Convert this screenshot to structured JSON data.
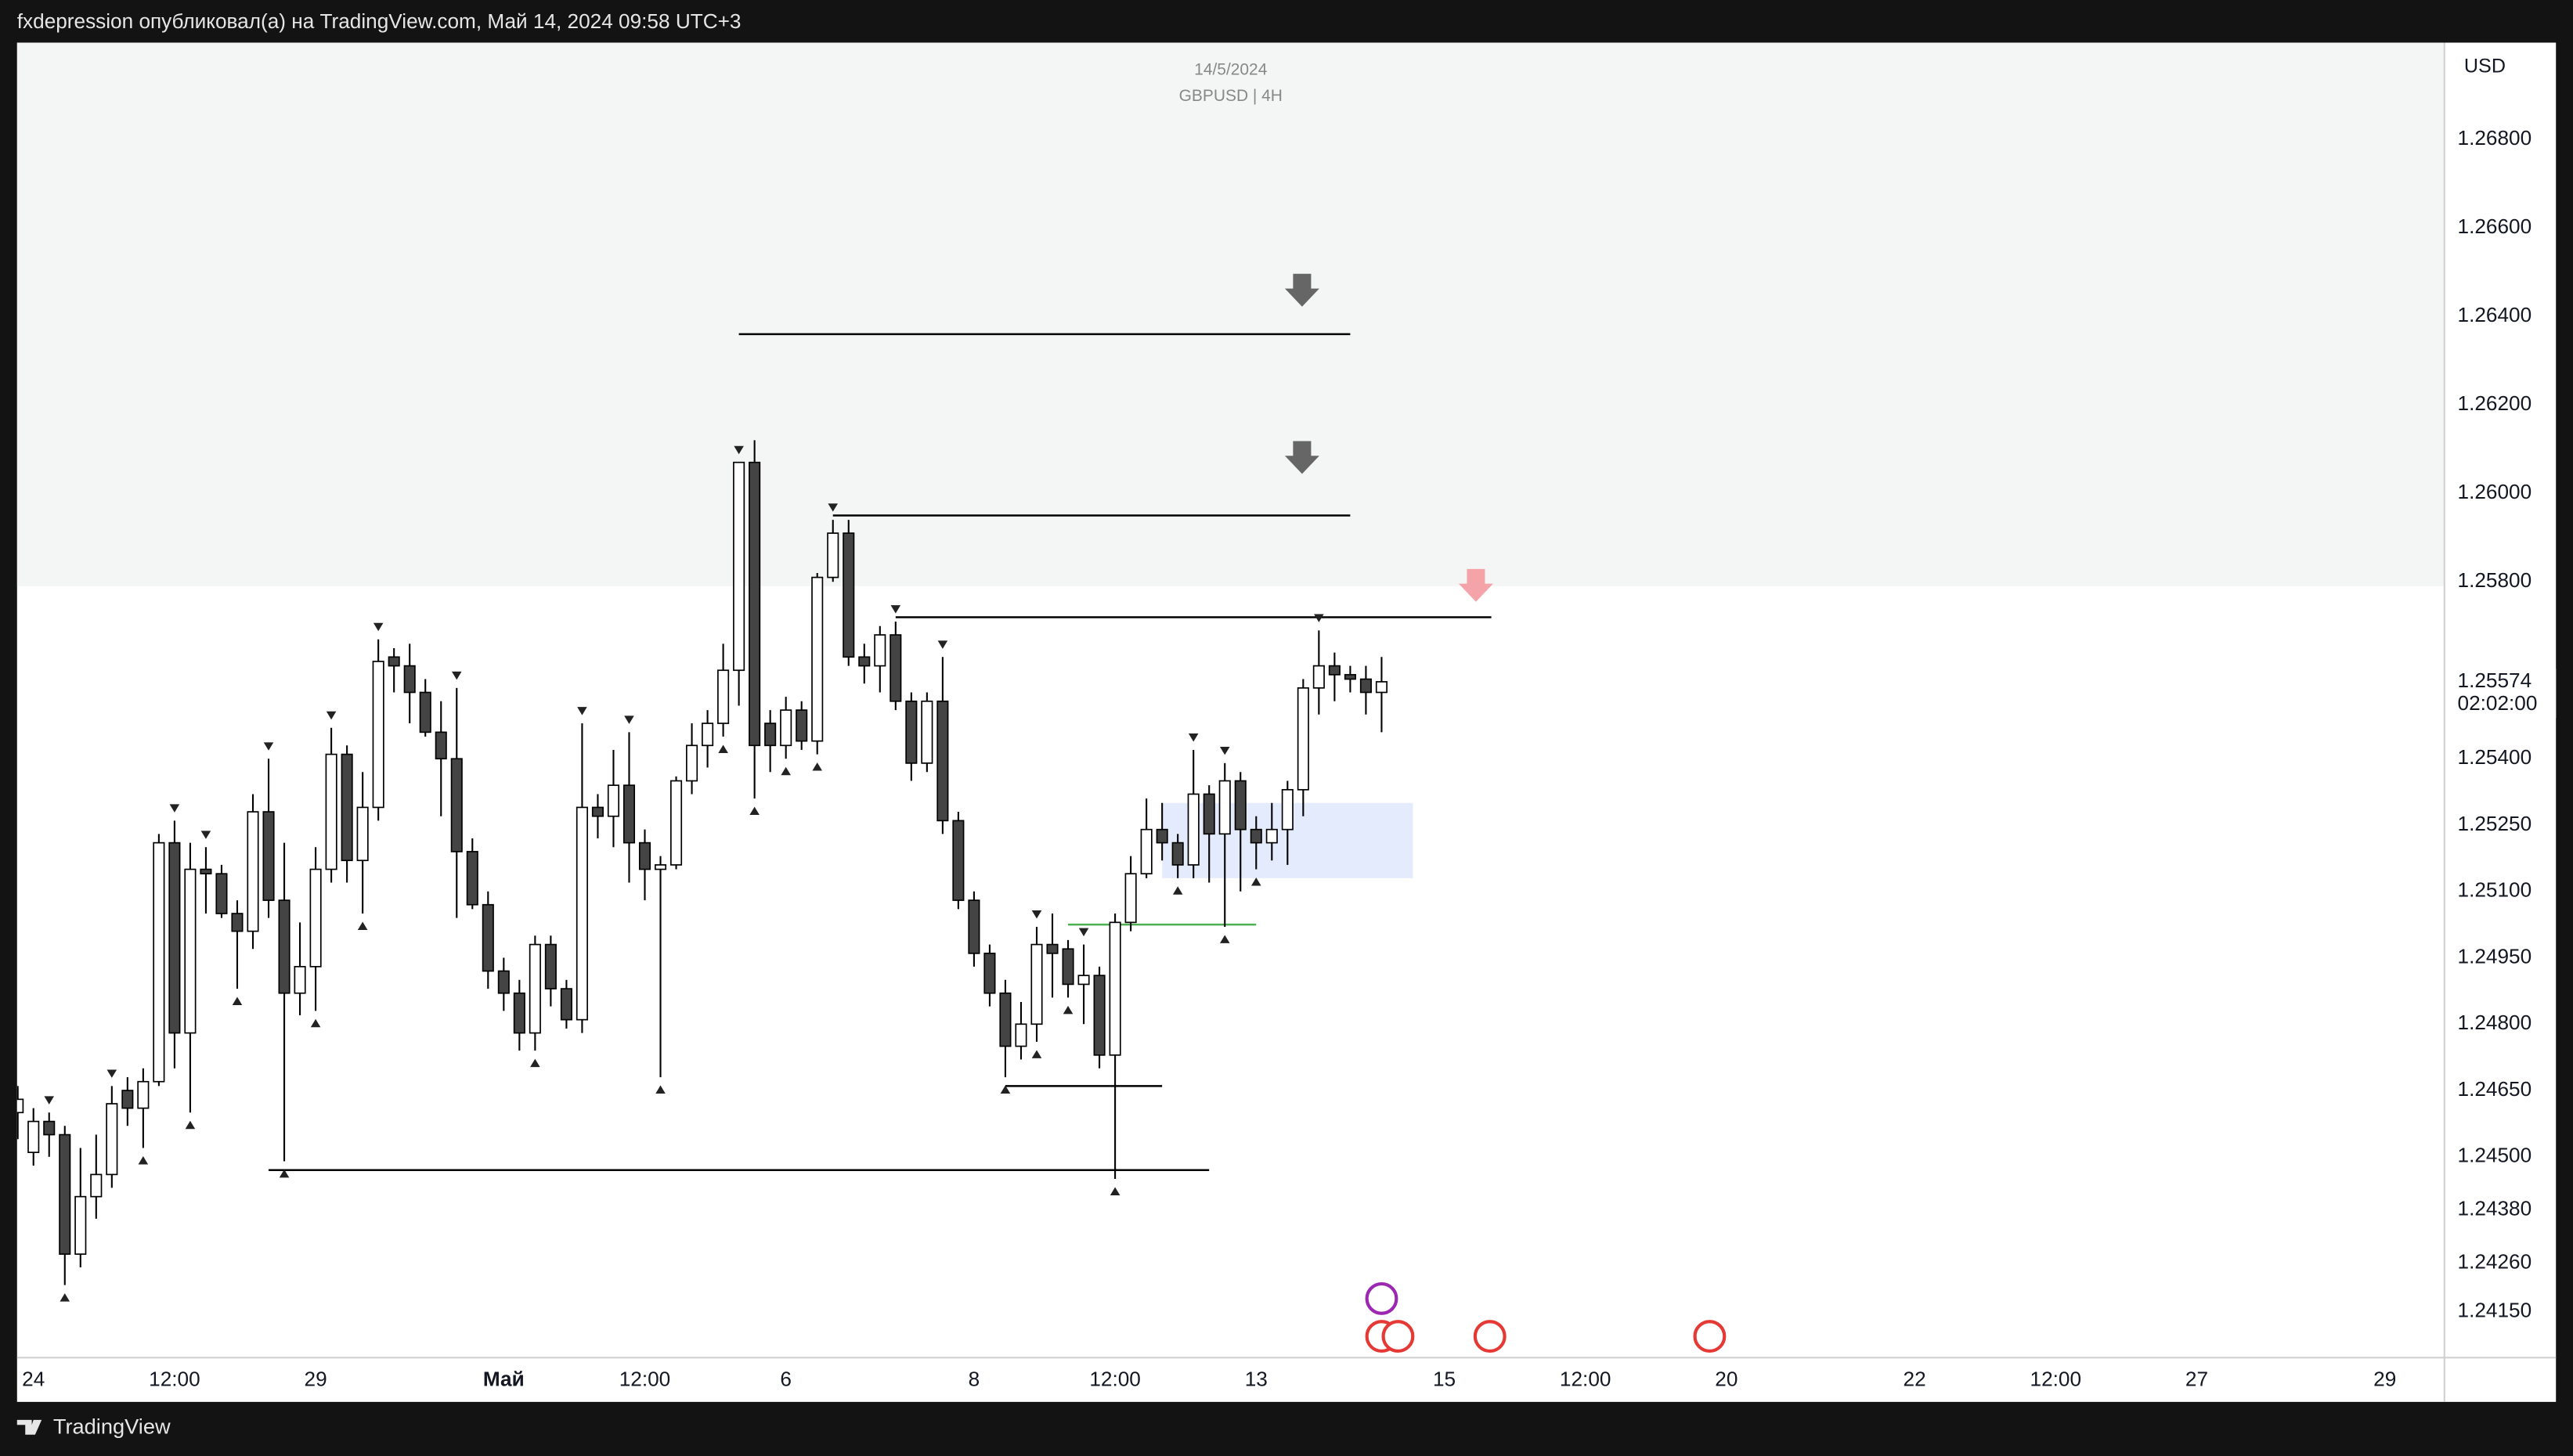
{
  "header": {
    "text": "fxdepression опубликовал(а) на TradingView.com, Май 14, 2024 09:58 UTC+3"
  },
  "footer": {
    "brand": "TradingView"
  },
  "chart_data": {
    "type": "candlestick",
    "watermark_date": "14/5/2024",
    "symbol": "GBPUSD | 4H",
    "currency": "USD",
    "last_price": 1.25574,
    "countdown": "02:02:00",
    "up_color": "#ffffff",
    "down_color": "#444444",
    "border_color": "#000000",
    "xlim": [
      -1.046,
      153.8
    ],
    "ylim": [
      1.24046,
      1.27019
    ],
    "grid": false,
    "yticks": [
      {
        "value": 1.268,
        "label": "1.26800"
      },
      {
        "value": 1.266,
        "label": "1.26600"
      },
      {
        "value": 1.264,
        "label": "1.26400"
      },
      {
        "value": 1.262,
        "label": "1.26200"
      },
      {
        "value": 1.26,
        "label": "1.26000"
      },
      {
        "value": 1.258,
        "label": "1.25800"
      },
      {
        "value": 1.254,
        "label": "1.25400"
      },
      {
        "value": 1.2525,
        "label": "1.25250"
      },
      {
        "value": 1.251,
        "label": "1.25100"
      },
      {
        "value": 1.2495,
        "label": "1.24950"
      },
      {
        "value": 1.248,
        "label": "1.24800"
      },
      {
        "value": 1.2465,
        "label": "1.24650"
      },
      {
        "value": 1.245,
        "label": "1.24500"
      },
      {
        "value": 1.2438,
        "label": "1.24380"
      },
      {
        "value": 1.2426,
        "label": "1.24260"
      },
      {
        "value": 1.2415,
        "label": "1.24150"
      }
    ],
    "xticks": [
      {
        "value": 0,
        "label": "24"
      },
      {
        "value": 9,
        "label": "12:00"
      },
      {
        "value": 18,
        "label": "29"
      },
      {
        "value": 30,
        "label": "Май"
      },
      {
        "value": 39,
        "label": "12:00"
      },
      {
        "value": 48,
        "label": "6"
      },
      {
        "value": 60,
        "label": "8"
      },
      {
        "value": 69,
        "label": "12:00"
      },
      {
        "value": 78,
        "label": "13"
      },
      {
        "value": 90,
        "label": "15"
      },
      {
        "value": 99,
        "label": "12:00"
      },
      {
        "value": 108,
        "label": "20"
      },
      {
        "value": 120,
        "label": "22"
      },
      {
        "value": 129,
        "label": "12:00"
      },
      {
        "value": 138,
        "label": "27"
      },
      {
        "value": 150,
        "label": "29"
      }
    ],
    "series": [
      {
        "x": [
          -1,
          0,
          1,
          2,
          3,
          4,
          5,
          6,
          7,
          8,
          9,
          10,
          11,
          12,
          13,
          14,
          15,
          16,
          17,
          18,
          19,
          20,
          21,
          22,
          23,
          24,
          25,
          26,
          27,
          28,
          29,
          30,
          31,
          32,
          33,
          34,
          35,
          36,
          37,
          38,
          39,
          40,
          41,
          42,
          43,
          44,
          45,
          46,
          47,
          48,
          49,
          50,
          51,
          52,
          53,
          54,
          55,
          56,
          57,
          58,
          59,
          60,
          61,
          62,
          63,
          64,
          65,
          66,
          67,
          68,
          69,
          70,
          71,
          72,
          73,
          74,
          75,
          76,
          77,
          78,
          79,
          80,
          81,
          82,
          83,
          84,
          85,
          86
        ],
        "open": [
          1.246,
          1.2451,
          1.2458,
          1.2455,
          1.2428,
          1.2441,
          1.2446,
          1.2465,
          1.2461,
          1.2467,
          1.2521,
          1.2478,
          1.2515,
          1.2514,
          1.2505,
          1.2501,
          1.2528,
          1.2508,
          1.2487,
          1.2493,
          1.2515,
          1.2541,
          1.2517,
          1.2529,
          1.2563,
          1.2561,
          1.2555,
          1.2546,
          1.254,
          1.2519,
          1.2507,
          1.2492,
          1.2487,
          1.2478,
          1.2498,
          1.2488,
          1.2481,
          1.2529,
          1.2527,
          1.2534,
          1.2521,
          1.2515,
          1.2516,
          1.2535,
          1.2543,
          1.2548,
          1.256,
          1.2607,
          1.2548,
          1.2543,
          1.2551,
          1.2544,
          1.2581,
          1.2591,
          1.2563,
          1.2561,
          1.2568,
          1.2553,
          1.2539,
          1.2553,
          1.2526,
          1.2508,
          1.2496,
          1.2487,
          1.2475,
          1.248,
          1.2498,
          1.2497,
          1.2489,
          1.2491,
          1.2473,
          1.2503,
          1.2514,
          1.2524,
          1.2521,
          1.2516,
          1.2532,
          1.2523,
          1.2535,
          1.2524,
          1.2521,
          1.2524,
          1.2533,
          1.2556,
          1.2561,
          1.2559,
          1.2558,
          1.2555
        ],
        "high": [
          1.2466,
          1.2461,
          1.246,
          1.2457,
          1.2452,
          1.2455,
          1.2466,
          1.2468,
          1.247,
          1.2523,
          1.2526,
          1.2521,
          1.252,
          1.2516,
          1.2508,
          1.2532,
          1.254,
          1.2521,
          1.2503,
          1.252,
          1.2547,
          1.2543,
          1.2537,
          1.2567,
          1.2565,
          1.2566,
          1.2558,
          1.2553,
          1.2556,
          1.2522,
          1.251,
          1.2495,
          1.249,
          1.25,
          1.25,
          1.249,
          1.2548,
          1.2532,
          1.2542,
          1.2546,
          1.2524,
          1.2518,
          1.2536,
          1.2548,
          1.2551,
          1.2566,
          1.2607,
          1.2612,
          1.2551,
          1.2554,
          1.2553,
          1.2582,
          1.2594,
          1.2594,
          1.2566,
          1.257,
          1.2571,
          1.2555,
          1.2555,
          1.2563,
          1.2528,
          1.251,
          1.2498,
          1.249,
          1.2485,
          1.2502,
          1.2505,
          1.2499,
          1.2498,
          1.2493,
          1.2505,
          1.2518,
          1.2531,
          1.253,
          1.2523,
          1.2542,
          1.2534,
          1.2539,
          1.2537,
          1.2527,
          1.253,
          1.2535,
          1.2558,
          1.2569,
          1.2564,
          1.2561,
          1.2561,
          1.2563
        ],
        "low": [
          1.2454,
          1.2448,
          1.245,
          1.2421,
          1.2425,
          1.2436,
          1.2443,
          1.2457,
          1.2452,
          1.2466,
          1.247,
          1.246,
          1.2505,
          1.2504,
          1.2488,
          1.2497,
          1.2504,
          1.2449,
          1.2482,
          1.2483,
          1.2512,
          1.2512,
          1.2505,
          1.2526,
          1.2555,
          1.2548,
          1.2545,
          1.2527,
          1.2504,
          1.2506,
          1.2488,
          1.2483,
          1.2474,
          1.2474,
          1.2484,
          1.2479,
          1.2478,
          1.2522,
          1.252,
          1.2512,
          1.2508,
          1.2468,
          1.2515,
          1.2532,
          1.2538,
          1.2545,
          1.2552,
          1.2531,
          1.2537,
          1.254,
          1.2542,
          1.2541,
          1.258,
          1.2561,
          1.2557,
          1.2555,
          1.2551,
          1.2535,
          1.2537,
          1.2523,
          1.2506,
          1.2493,
          1.2484,
          1.2468,
          1.2472,
          1.2476,
          1.2486,
          1.2486,
          1.248,
          1.247,
          1.2445,
          1.2501,
          1.2513,
          1.2517,
          1.2513,
          1.2513,
          1.2512,
          1.2502,
          1.251,
          1.2515,
          1.2517,
          1.2516,
          1.2527,
          1.255,
          1.2553,
          1.2555,
          1.255,
          1.2546
        ],
        "close": [
          1.2463,
          1.2458,
          1.2455,
          1.2428,
          1.2441,
          1.2446,
          1.2462,
          1.2461,
          1.2467,
          1.2521,
          1.2478,
          1.2515,
          1.2514,
          1.2505,
          1.2501,
          1.2528,
          1.2508,
          1.2487,
          1.2493,
          1.2515,
          1.2541,
          1.2517,
          1.2529,
          1.2562,
          1.2561,
          1.2555,
          1.2546,
          1.254,
          1.2519,
          1.2507,
          1.2492,
          1.2487,
          1.2478,
          1.2498,
          1.2488,
          1.2481,
          1.2529,
          1.2527,
          1.2534,
          1.2521,
          1.2515,
          1.2516,
          1.2535,
          1.2543,
          1.2548,
          1.256,
          1.2607,
          1.2543,
          1.2543,
          1.2551,
          1.2544,
          1.2581,
          1.2591,
          1.2563,
          1.2561,
          1.2568,
          1.2553,
          1.2539,
          1.2553,
          1.2526,
          1.2508,
          1.2496,
          1.2487,
          1.2475,
          1.248,
          1.2498,
          1.2496,
          1.2489,
          1.2491,
          1.2473,
          1.2503,
          1.2514,
          1.2524,
          1.2521,
          1.2516,
          1.2532,
          1.2523,
          1.2535,
          1.2524,
          1.2521,
          1.2524,
          1.2533,
          1.2556,
          1.2561,
          1.2559,
          1.2558,
          1.2555,
          1.25574
        ]
      }
    ],
    "fractal_highs": [
      1,
      5,
      9,
      11,
      15,
      19,
      22,
      27,
      35,
      38,
      45,
      51,
      55,
      58,
      64,
      67,
      74,
      76,
      82
    ],
    "fractal_lows": [
      2,
      7,
      10,
      13,
      16,
      18,
      21,
      32,
      40,
      44,
      46,
      48,
      50,
      62,
      64,
      66,
      69,
      73,
      76,
      78
    ],
    "levels": [
      {
        "price": 1.2636,
        "x": [
          45,
          84
        ],
        "color": "#000000"
      },
      {
        "price": 1.2595,
        "x": [
          51,
          84
        ],
        "color": "#000000"
      },
      {
        "price": 1.2572,
        "x": [
          55,
          93
        ],
        "color": "#000000"
      },
      {
        "price": 1.2466,
        "x": [
          62,
          72
        ],
        "color": "#000000"
      },
      {
        "price": 1.2447,
        "x": [
          15,
          75
        ],
        "color": "#000000"
      },
      {
        "price": 1.25025,
        "x": [
          66,
          78
        ],
        "color": "#4caf50"
      }
    ],
    "box": {
      "x": [
        72,
        88
      ],
      "y": [
        1.2513,
        1.253
      ],
      "color": "#dfe7fb"
    },
    "zone": {
      "from": 1.2579,
      "color": "#f4f5f5"
    }
  }
}
